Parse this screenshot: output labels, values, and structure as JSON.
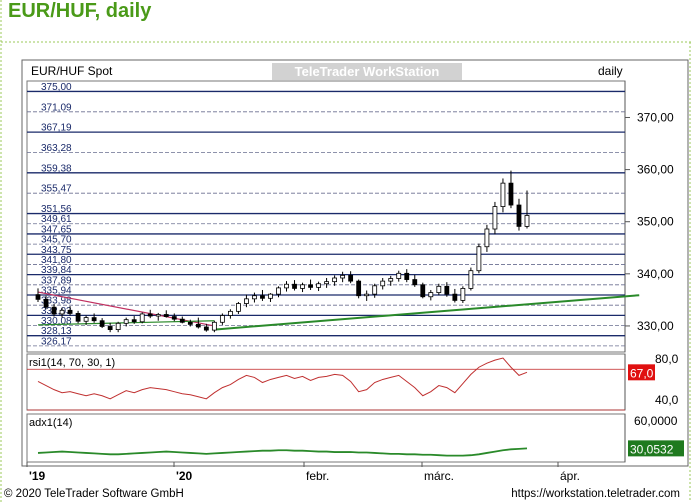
{
  "page": {
    "title": "EUR/HUF, daily",
    "copyright": "© 2020 TeleTrader Software GmbH",
    "url": "https://workstation.teletrader.com"
  },
  "chart_data": [
    {
      "type": "line",
      "subtype": "candlestick",
      "instrument": "EUR/HUF Spot",
      "period": "daily",
      "watermark": "TeleTrader WorkStation",
      "ylim": [
        325,
        377
      ],
      "y_ticks": [
        330,
        340,
        350,
        360,
        370
      ],
      "y_tick_labels": [
        "330,00",
        "340,00",
        "350,00",
        "360,00",
        "370,00"
      ],
      "x_tick_labels": [
        "'19",
        "'20",
        "febr.",
        "márc.",
        "ápr."
      ],
      "level_labels": [
        "375,00",
        "371,09",
        "367,19",
        "363,28",
        "359,38",
        "355,47",
        "351,56",
        "349,61",
        "347,65",
        "345,70",
        "343,75",
        "341,80",
        "339,84",
        "337,89",
        "335,94",
        "333,98",
        "332,03",
        "330,08",
        "328,13",
        "326,17"
      ],
      "level_values": [
        375.0,
        371.09,
        367.19,
        363.28,
        359.38,
        355.47,
        351.56,
        349.61,
        347.65,
        345.7,
        343.75,
        341.8,
        339.84,
        337.89,
        335.94,
        333.98,
        332.03,
        330.08,
        328.13,
        326.17
      ],
      "candles": [
        [
          336.0,
          337.2,
          334.6,
          335.1
        ],
        [
          335.1,
          335.8,
          333.2,
          333.6
        ],
        [
          333.6,
          334.2,
          331.8,
          332.3
        ],
        [
          332.3,
          333.5,
          331.6,
          333.0
        ],
        [
          333.0,
          333.8,
          332.0,
          332.4
        ],
        [
          332.4,
          332.9,
          330.5,
          330.9
        ],
        [
          330.9,
          332.0,
          330.2,
          331.6
        ],
        [
          331.6,
          332.4,
          330.6,
          331.0
        ],
        [
          331.0,
          331.5,
          329.6,
          329.9
        ],
        [
          329.9,
          330.6,
          328.8,
          329.3
        ],
        [
          329.3,
          330.8,
          328.8,
          330.5
        ],
        [
          330.5,
          331.6,
          329.9,
          331.2
        ],
        [
          331.2,
          331.9,
          330.4,
          330.8
        ],
        [
          330.8,
          332.6,
          330.5,
          332.3
        ],
        [
          332.3,
          333.1,
          331.5,
          331.9
        ],
        [
          331.9,
          332.5,
          331.0,
          332.2
        ],
        [
          332.2,
          333.0,
          331.6,
          331.8
        ],
        [
          331.8,
          332.4,
          330.9,
          331.3
        ],
        [
          331.3,
          331.8,
          330.5,
          330.7
        ],
        [
          330.7,
          331.2,
          329.9,
          330.3
        ],
        [
          330.3,
          331.6,
          329.5,
          329.8
        ],
        [
          329.8,
          330.4,
          328.9,
          329.2
        ],
        [
          329.2,
          331.0,
          328.8,
          330.7
        ],
        [
          330.7,
          332.4,
          330.2,
          332.0
        ],
        [
          332.0,
          333.2,
          331.4,
          332.8
        ],
        [
          332.8,
          334.6,
          332.3,
          334.3
        ],
        [
          334.3,
          336.0,
          333.6,
          335.2
        ],
        [
          335.2,
          336.4,
          334.5,
          335.8
        ],
        [
          335.8,
          336.9,
          334.8,
          335.3
        ],
        [
          335.3,
          336.3,
          334.6,
          336.1
        ],
        [
          336.1,
          337.6,
          335.5,
          337.3
        ],
        [
          337.3,
          338.6,
          336.6,
          338.0
        ],
        [
          338.0,
          338.8,
          336.8,
          337.2
        ],
        [
          337.2,
          338.3,
          336.5,
          337.9
        ],
        [
          337.9,
          338.9,
          336.9,
          337.4
        ],
        [
          337.4,
          338.5,
          336.7,
          338.1
        ],
        [
          338.1,
          339.2,
          337.3,
          338.5
        ],
        [
          338.5,
          339.7,
          337.7,
          339.2
        ],
        [
          339.2,
          340.4,
          338.4,
          339.7
        ],
        [
          339.7,
          340.5,
          338.2,
          338.6
        ],
        [
          338.6,
          338.9,
          335.3,
          335.8
        ],
        [
          335.8,
          336.8,
          334.8,
          336.1
        ],
        [
          336.1,
          338.1,
          335.4,
          337.7
        ],
        [
          337.7,
          339.2,
          337.0,
          338.6
        ],
        [
          338.6,
          339.6,
          337.7,
          339.1
        ],
        [
          339.1,
          340.6,
          338.5,
          340.1
        ],
        [
          340.1,
          340.9,
          338.4,
          338.9
        ],
        [
          338.9,
          339.8,
          337.5,
          337.9
        ],
        [
          337.9,
          338.3,
          335.3,
          335.6
        ],
        [
          335.6,
          336.9,
          334.9,
          336.4
        ],
        [
          336.4,
          338.1,
          335.9,
          337.6
        ],
        [
          337.6,
          338.4,
          335.6,
          336.1
        ],
        [
          336.1,
          337.1,
          334.5,
          334.9
        ],
        [
          334.9,
          337.6,
          334.4,
          337.2
        ],
        [
          337.2,
          341.2,
          336.8,
          340.6
        ],
        [
          340.6,
          345.8,
          340.1,
          345.2
        ],
        [
          345.2,
          349.4,
          344.2,
          348.6
        ],
        [
          348.6,
          353.8,
          347.6,
          352.9
        ],
        [
          352.9,
          358.3,
          351.8,
          357.4
        ],
        [
          357.4,
          359.8,
          352.6,
          353.2
        ],
        [
          353.2,
          354.4,
          348.3,
          349.1
        ],
        [
          349.1,
          356.0,
          348.7,
          351.2
        ]
      ],
      "trendlines": [
        {
          "name": "",
          "color": "#c03060",
          "from": [
            0,
            336.5
          ],
          "to": [
            22,
            330.0
          ]
        },
        {
          "name": "",
          "color": "#2a8a2a",
          "from": [
            22,
            329.3
          ],
          "to": [
            75,
            335.9
          ]
        },
        {
          "name": "",
          "color": "#2a8a2a",
          "from": [
            0,
            330.2
          ],
          "to": [
            22,
            331.0
          ]
        }
      ]
    },
    {
      "type": "line",
      "indicator": "rsi1(14, 70, 30, 1)",
      "ylim": [
        30,
        85
      ],
      "levels": [
        70,
        30
      ],
      "tick_labels": [
        "80,0",
        "40,0"
      ],
      "last_value_label": "67,0",
      "last_value": 67.0,
      "color": "#c03030",
      "values": [
        58,
        54,
        50,
        47,
        48,
        46,
        44,
        46,
        44,
        41,
        45,
        49,
        47,
        50,
        52,
        51,
        50,
        48,
        46,
        45,
        43,
        41,
        47,
        52,
        55,
        60,
        64,
        62,
        57,
        60,
        62,
        64,
        61,
        63,
        59,
        62,
        63,
        65,
        64,
        58,
        48,
        50,
        57,
        60,
        62,
        64,
        58,
        52,
        44,
        48,
        54,
        52,
        47,
        56,
        65,
        72,
        76,
        79,
        81,
        72,
        64,
        67
      ]
    },
    {
      "type": "line",
      "indicator": "adx1(14)",
      "ylim": [
        15,
        68
      ],
      "tick_labels": [
        "60,0000"
      ],
      "last_value_label": "30,0532",
      "last_value": 30.0532,
      "color": "#2a8a2a",
      "values": [
        25,
        25.5,
        26,
        26.5,
        26,
        25.5,
        25,
        24.5,
        24,
        23.5,
        23.5,
        24,
        24.5,
        25,
        25.5,
        26,
        26.5,
        26,
        25.5,
        25,
        24.5,
        24,
        24.5,
        25,
        25.5,
        26,
        26.5,
        27,
        27.5,
        27.5,
        28,
        28,
        27.5,
        27.5,
        27,
        26.5,
        26.5,
        26,
        26,
        26,
        25.5,
        25.5,
        25,
        24.5,
        24,
        24,
        23.5,
        23.5,
        23,
        23,
        22.5,
        22,
        22,
        22,
        22.5,
        23.5,
        25,
        26.5,
        28,
        29,
        29.5,
        30.05
      ]
    }
  ]
}
